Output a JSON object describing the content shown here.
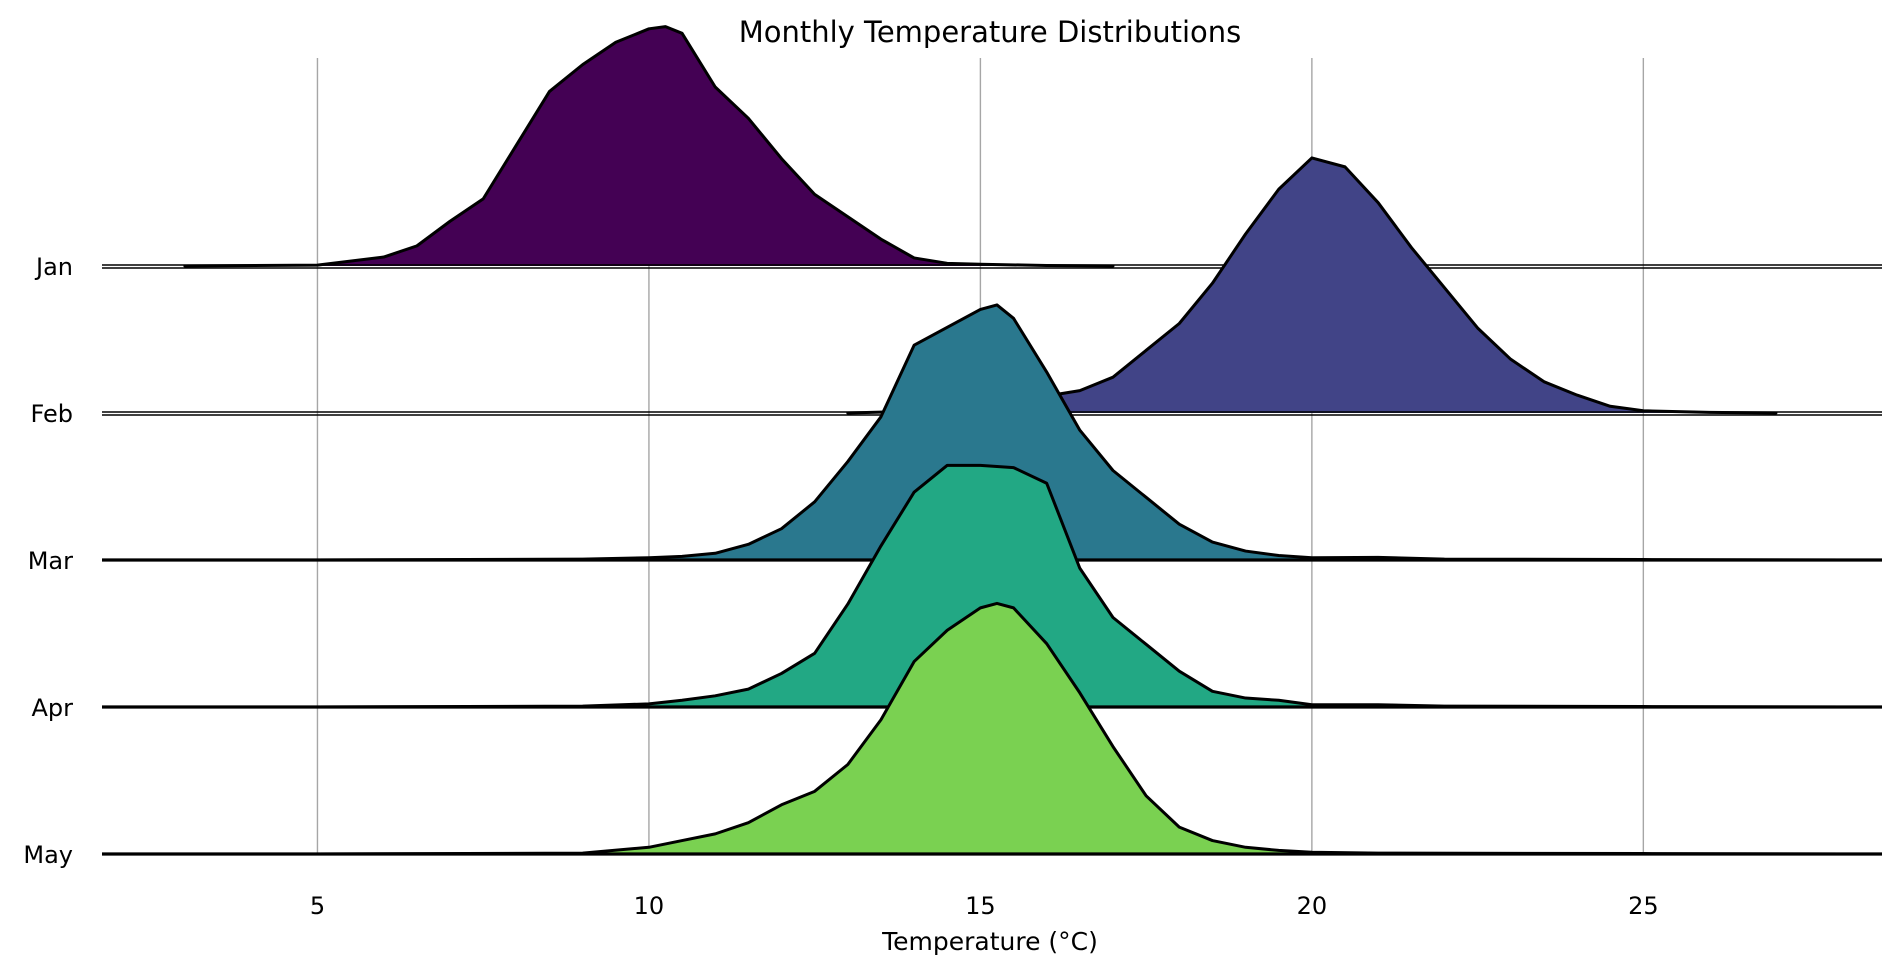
{
  "chart_data": {
    "type": "ridgeline",
    "title": "Monthly Temperature Distributions",
    "xlabel": "Temperature (°C)",
    "ylabel": "",
    "xlim": [
      1.75,
      28.6
    ],
    "x_ticks": [
      5,
      10,
      15,
      20,
      25
    ],
    "x_tick_labels": [
      "5",
      "10",
      "15",
      "20",
      "25"
    ],
    "grid": {
      "x": true,
      "y": false
    },
    "categories": [
      "Jan",
      "Feb",
      "Mar",
      "Apr",
      "May"
    ],
    "series": [
      {
        "name": "Jan",
        "color": "#440154",
        "x": [
          3,
          5,
          6,
          6.5,
          7,
          7.5,
          8,
          8.5,
          9,
          9.5,
          10,
          10.25,
          10.5,
          11,
          11.5,
          12,
          12.5,
          13,
          13.5,
          14,
          14.5,
          15,
          16,
          17
        ],
        "density": [
          0.0,
          0.002,
          0.02,
          0.045,
          0.1,
          0.15,
          0.27,
          0.39,
          0.45,
          0.5,
          0.53,
          0.535,
          0.52,
          0.4,
          0.33,
          0.24,
          0.16,
          0.11,
          0.06,
          0.018,
          0.006,
          0.004,
          0.001,
          0.0
        ]
      },
      {
        "name": "Feb",
        "color": "#414487",
        "x": [
          13,
          14,
          14.5,
          15,
          15.5,
          16,
          16.5,
          17,
          17.5,
          18,
          18.5,
          19,
          19.5,
          20,
          20.5,
          21,
          21.5,
          22,
          22.5,
          23,
          23.5,
          24,
          24.5,
          25,
          26,
          27
        ],
        "density": [
          0.0,
          0.004,
          0.012,
          0.02,
          0.028,
          0.038,
          0.05,
          0.08,
          0.14,
          0.2,
          0.29,
          0.4,
          0.5,
          0.57,
          0.55,
          0.47,
          0.37,
          0.28,
          0.19,
          0.12,
          0.07,
          0.04,
          0.015,
          0.005,
          0.0015,
          0.0
        ]
      },
      {
        "name": "Mar",
        "color": "#2a788e",
        "x": [
          5,
          9,
          10,
          10.5,
          11,
          11.5,
          12,
          12.5,
          13,
          13.5,
          14,
          14.5,
          15,
          15.25,
          15.5,
          16,
          16.5,
          17,
          17.5,
          18,
          18.5,
          19,
          19.5,
          20,
          21,
          22,
          25,
          28
        ],
        "density": [
          0.0,
          0.002,
          0.005,
          0.008,
          0.015,
          0.035,
          0.07,
          0.13,
          0.22,
          0.32,
          0.48,
          0.52,
          0.56,
          0.57,
          0.54,
          0.42,
          0.29,
          0.2,
          0.14,
          0.08,
          0.04,
          0.02,
          0.01,
          0.005,
          0.006,
          0.002,
          0.001,
          0.0
        ]
      },
      {
        "name": "Apr",
        "color": "#22a884",
        "x": [
          5,
          9,
          10,
          10.5,
          11,
          11.5,
          12,
          12.5,
          13,
          13.5,
          14,
          14.5,
          15,
          15.5,
          16,
          16.5,
          17,
          17.5,
          18,
          18.5,
          19,
          19.5,
          20,
          21,
          22,
          25,
          28
        ],
        "density": [
          0.0,
          0.002,
          0.007,
          0.015,
          0.025,
          0.04,
          0.075,
          0.12,
          0.23,
          0.36,
          0.48,
          0.54,
          0.54,
          0.535,
          0.5,
          0.31,
          0.2,
          0.14,
          0.08,
          0.035,
          0.02,
          0.015,
          0.005,
          0.005,
          0.002,
          0.001,
          0.0
        ]
      },
      {
        "name": "May",
        "color": "#7ad151",
        "x": [
          5,
          9,
          10,
          10.5,
          11,
          11.5,
          12,
          12.5,
          13,
          13.5,
          14,
          14.5,
          15,
          15.25,
          15.5,
          16,
          16.5,
          17,
          17.5,
          18,
          18.5,
          19,
          19.5,
          20,
          21,
          25,
          28
        ],
        "density": [
          0.0,
          0.002,
          0.015,
          0.03,
          0.045,
          0.07,
          0.11,
          0.14,
          0.2,
          0.3,
          0.43,
          0.5,
          0.55,
          0.56,
          0.55,
          0.47,
          0.36,
          0.24,
          0.13,
          0.06,
          0.03,
          0.015,
          0.008,
          0.004,
          0.002,
          0.001,
          0.0
        ]
      }
    ],
    "ylim_per_ridge": [
      0,
      0.8
    ],
    "legend": "none"
  }
}
